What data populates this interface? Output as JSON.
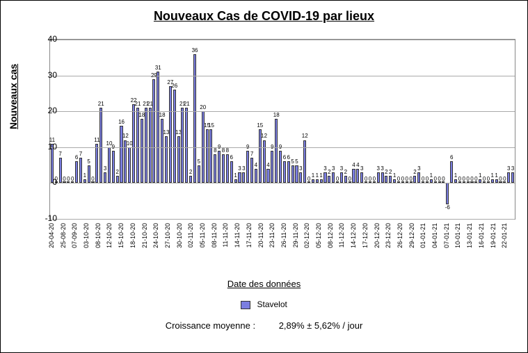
{
  "chart": {
    "type": "bar",
    "title": "Nouveaux Cas de COVID-19 par lieux",
    "yaxis_label": "Nouveaux cas",
    "xaxis_label": "Date des données",
    "legend_label": "Stavelot",
    "footer_prefix": "Croissance moyenne :",
    "footer_value": "2,89%  ± 5,62% / jour",
    "title_fontsize": 18,
    "axis_label_fontsize": 14,
    "tick_fontsize": 12,
    "bar_label_fontsize": 8,
    "bar_color": "#7b7ee0",
    "bar_border_color": "#333333",
    "grid_color": "#aaaaaa",
    "background_color": "#ffffff",
    "ylim": [
      -10,
      40
    ],
    "yticks": [
      -10,
      0,
      10,
      20,
      30,
      40
    ],
    "x_categories": [
      "20-04-20",
      "25-08-20",
      "07-09-20",
      "03-10-20",
      "08-10-20",
      "12-10-20",
      "15-10-20",
      "18-10-20",
      "21-10-20",
      "24-10-20",
      "27-10-20",
      "30-10-20",
      "02-11-20",
      "05-11-20",
      "08-11-20",
      "11-11-20",
      "14-11-20",
      "17-11-20",
      "20-11-20",
      "23-11-20",
      "26-11-20",
      "29-11-20",
      "02-12-20",
      "05-12-20",
      "08-12-20",
      "11-12-20",
      "14-12-20",
      "17-12-20",
      "20-12-20",
      "23-12-20",
      "26-12-20",
      "29-12-20",
      "01-01-21",
      "04-01-21",
      "07-01-21",
      "10-01-21",
      "13-01-21",
      "16-01-21",
      "19-01-21",
      "22-01-21"
    ],
    "values": [
      11,
      0,
      7,
      0,
      0,
      0,
      6,
      7,
      1,
      5,
      0,
      11,
      21,
      3,
      10,
      9,
      2,
      16,
      12,
      10,
      22,
      21,
      18,
      21,
      21,
      29,
      31,
      18,
      13,
      27,
      26,
      13,
      21,
      21,
      2,
      36,
      5,
      20,
      15,
      15,
      8,
      9,
      8,
      8,
      6,
      1,
      3,
      3,
      9,
      7,
      4,
      15,
      12,
      4,
      9,
      18,
      9,
      6,
      6,
      5,
      5,
      3,
      12,
      0,
      1,
      1,
      1,
      3,
      2,
      3,
      0,
      3,
      2,
      0,
      4,
      4,
      3,
      0,
      0,
      0,
      3,
      3,
      2,
      2,
      1,
      0,
      0,
      0,
      0,
      2,
      3,
      0,
      0,
      1,
      0,
      0,
      0,
      -6,
      6,
      1,
      0,
      0,
      0,
      0,
      0,
      1,
      0,
      0,
      1,
      1,
      0,
      0,
      3,
      3
    ],
    "show_x_every": 3
  }
}
